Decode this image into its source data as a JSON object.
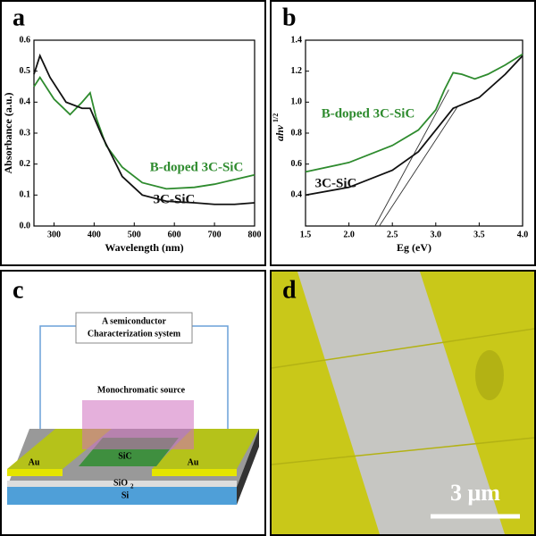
{
  "chart_data": [
    {
      "type": "line",
      "panel": "a",
      "x_label": "Wavelength (nm)",
      "y_label": "Absorbance (a.u.)",
      "xlim": [
        250,
        800
      ],
      "xticks": [
        300,
        400,
        500,
        600,
        700,
        800
      ],
      "ylim": [
        0,
        0.6
      ],
      "yticks": [
        {
          "value": 0,
          "label": "0.0"
        },
        0.1,
        0.2,
        0.3,
        0.4,
        0.5,
        0.6
      ],
      "series": [
        {
          "name": "B-doped 3C-SiC",
          "color": "#2e8b2e",
          "x": [
            250,
            265,
            300,
            340,
            370,
            390,
            405,
            430,
            470,
            520,
            580,
            650,
            700,
            750,
            800
          ],
          "values": [
            0.45,
            0.48,
            0.41,
            0.36,
            0.4,
            0.43,
            0.35,
            0.26,
            0.19,
            0.14,
            0.12,
            0.125,
            0.135,
            0.15,
            0.165
          ]
        },
        {
          "name": "3C-SiC",
          "color": "#111111",
          "x": [
            250,
            265,
            290,
            330,
            370,
            390,
            420,
            470,
            520,
            580,
            650,
            700,
            750,
            800
          ],
          "values": [
            0.49,
            0.55,
            0.48,
            0.4,
            0.38,
            0.38,
            0.29,
            0.16,
            0.1,
            0.08,
            0.075,
            0.07,
            0.07,
            0.075
          ]
        }
      ]
    },
    {
      "type": "line",
      "panel": "b",
      "x_label": "Eg (eV)",
      "y_label": "ahv",
      "y_label_sup": "1/2",
      "xlim": [
        1.5,
        4.0
      ],
      "xticks": [
        1.5,
        {
          "value": 2,
          "label": "2.0"
        },
        2.5,
        {
          "value": 3,
          "label": "3.0"
        },
        3.5,
        {
          "value": 4,
          "label": "4.0"
        }
      ],
      "ylim": [
        0.2,
        1.4
      ],
      "yticks": [
        0.4,
        0.6,
        0.8,
        {
          "value": 1,
          "label": "1.0"
        },
        1.2,
        1.4
      ],
      "series": [
        {
          "name": "B-doped 3C-SiC",
          "color": "#2e8b2e",
          "x": [
            1.5,
            2.0,
            2.5,
            2.8,
            3.0,
            3.1,
            3.2,
            3.3,
            3.45,
            3.6,
            3.8,
            4.0
          ],
          "values": [
            0.55,
            0.61,
            0.72,
            0.82,
            0.95,
            1.08,
            1.19,
            1.18,
            1.15,
            1.18,
            1.24,
            1.31
          ]
        },
        {
          "name": "3C-SiC",
          "color": "#111111",
          "x": [
            1.5,
            2.0,
            2.5,
            2.8,
            3.0,
            3.2,
            3.5,
            3.8,
            4.0
          ],
          "values": [
            0.4,
            0.45,
            0.56,
            0.68,
            0.82,
            0.96,
            1.03,
            1.18,
            1.3
          ]
        }
      ],
      "tangents": [
        {
          "x": [
            2.3,
            3.15
          ],
          "values": [
            0.2,
            1.08
          ]
        },
        {
          "x": [
            2.35,
            3.25
          ],
          "values": [
            0.2,
            0.97
          ]
        }
      ]
    }
  ],
  "diagram": {
    "panel": "c",
    "system": [
      "A semiconductor",
      "Characterization system"
    ],
    "source": "Monochromatic source",
    "layers": {
      "au_left": "Au",
      "au_right": "Au",
      "sic": "SiC",
      "sio2": "SiO",
      "sio2_sub": "2",
      "si": "Si"
    }
  },
  "image": {
    "panel": "d",
    "scale_bar": "3 μm"
  }
}
